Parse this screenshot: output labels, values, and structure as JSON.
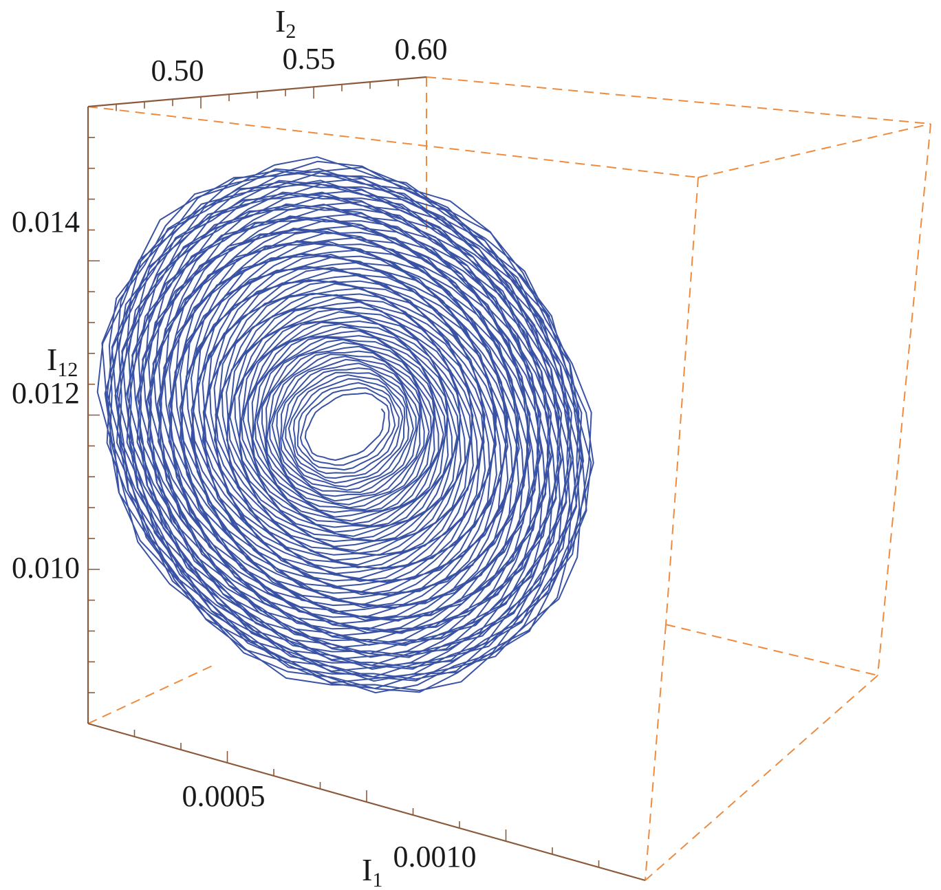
{
  "chart_data": {
    "type": "line",
    "dimension": "3d",
    "axes": {
      "x": {
        "label": "I",
        "subscript": "1",
        "ticks": [
          "0.0005",
          "0.0010"
        ],
        "range": [
          0.0002,
          0.0016
        ]
      },
      "y": {
        "label": "I",
        "subscript": "2",
        "ticks": [
          "0.50",
          "0.55",
          "0.60"
        ],
        "range": [
          0.46,
          0.6
        ]
      },
      "z": {
        "label": "I",
        "subscript": "12",
        "ticks": [
          "0.010",
          "0.012",
          "0.014"
        ],
        "range": [
          0.0082,
          0.0155
        ]
      }
    },
    "series": [
      {
        "style": "trajectory spiralling outward from a central hole",
        "center": {
          "x": 0.00085,
          "y": 0.55,
          "z": 0.0117
        },
        "inner_radius": {
          "x": 3e-05,
          "z": 0.0003
        },
        "outer_radius": {
          "x": 0.00058,
          "z": 0.0033
        },
        "turns": 85
      }
    ],
    "box": "dashed",
    "grid": false,
    "colors": {
      "curve": "#3a52a4",
      "box": "#f08a3c",
      "axis": "#8a5a3a"
    }
  }
}
